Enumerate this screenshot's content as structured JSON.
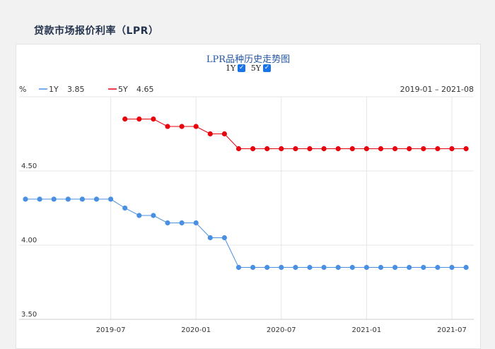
{
  "page": {
    "title": "贷款市场报价利率（LPR）"
  },
  "chart_header": {
    "title": "LPR品种历史走势图",
    "toggles": [
      {
        "label": "1Y",
        "checked": true
      },
      {
        "label": "5Y",
        "checked": true
      }
    ],
    "check_glyph": "✓"
  },
  "chart_data": {
    "type": "line",
    "unit_label": "%",
    "date_range_label": "2019-01 – 2021-08",
    "x": [
      "2019-01",
      "2019-02",
      "2019-03",
      "2019-04",
      "2019-05",
      "2019-06",
      "2019-07",
      "2019-08",
      "2019-09",
      "2019-10",
      "2019-11",
      "2019-12",
      "2020-01",
      "2020-02",
      "2020-03",
      "2020-04",
      "2020-05",
      "2020-06",
      "2020-07",
      "2020-08",
      "2020-09",
      "2020-10",
      "2020-11",
      "2020-12",
      "2021-01",
      "2021-02",
      "2021-03",
      "2021-04",
      "2021-05",
      "2021-06",
      "2021-07",
      "2021-08"
    ],
    "x_tick_labels": [
      "2019-07",
      "2020-01",
      "2020-07",
      "2021-01",
      "2021-07"
    ],
    "y_tick_labels": [
      "4.50",
      "4.00",
      "3.50"
    ],
    "ylim": [
      3.5,
      5.0
    ],
    "grid": true,
    "legend_position": "top-left",
    "series": [
      {
        "name": "1Y",
        "latest_label": "3.85",
        "color": "#4a90e2",
        "values": [
          4.31,
          4.31,
          4.31,
          4.31,
          4.31,
          4.31,
          4.31,
          4.25,
          4.2,
          4.2,
          4.15,
          4.15,
          4.15,
          4.05,
          4.05,
          3.85,
          3.85,
          3.85,
          3.85,
          3.85,
          3.85,
          3.85,
          3.85,
          3.85,
          3.85,
          3.85,
          3.85,
          3.85,
          3.85,
          3.85,
          3.85,
          3.85
        ]
      },
      {
        "name": "5Y",
        "latest_label": "4.65",
        "color": "#e8000b",
        "values": [
          null,
          null,
          null,
          null,
          null,
          null,
          null,
          4.85,
          4.85,
          4.85,
          4.8,
          4.8,
          4.8,
          4.75,
          4.75,
          4.65,
          4.65,
          4.65,
          4.65,
          4.65,
          4.65,
          4.65,
          4.65,
          4.65,
          4.65,
          4.65,
          4.65,
          4.65,
          4.65,
          4.65,
          4.65,
          4.65
        ]
      }
    ]
  }
}
